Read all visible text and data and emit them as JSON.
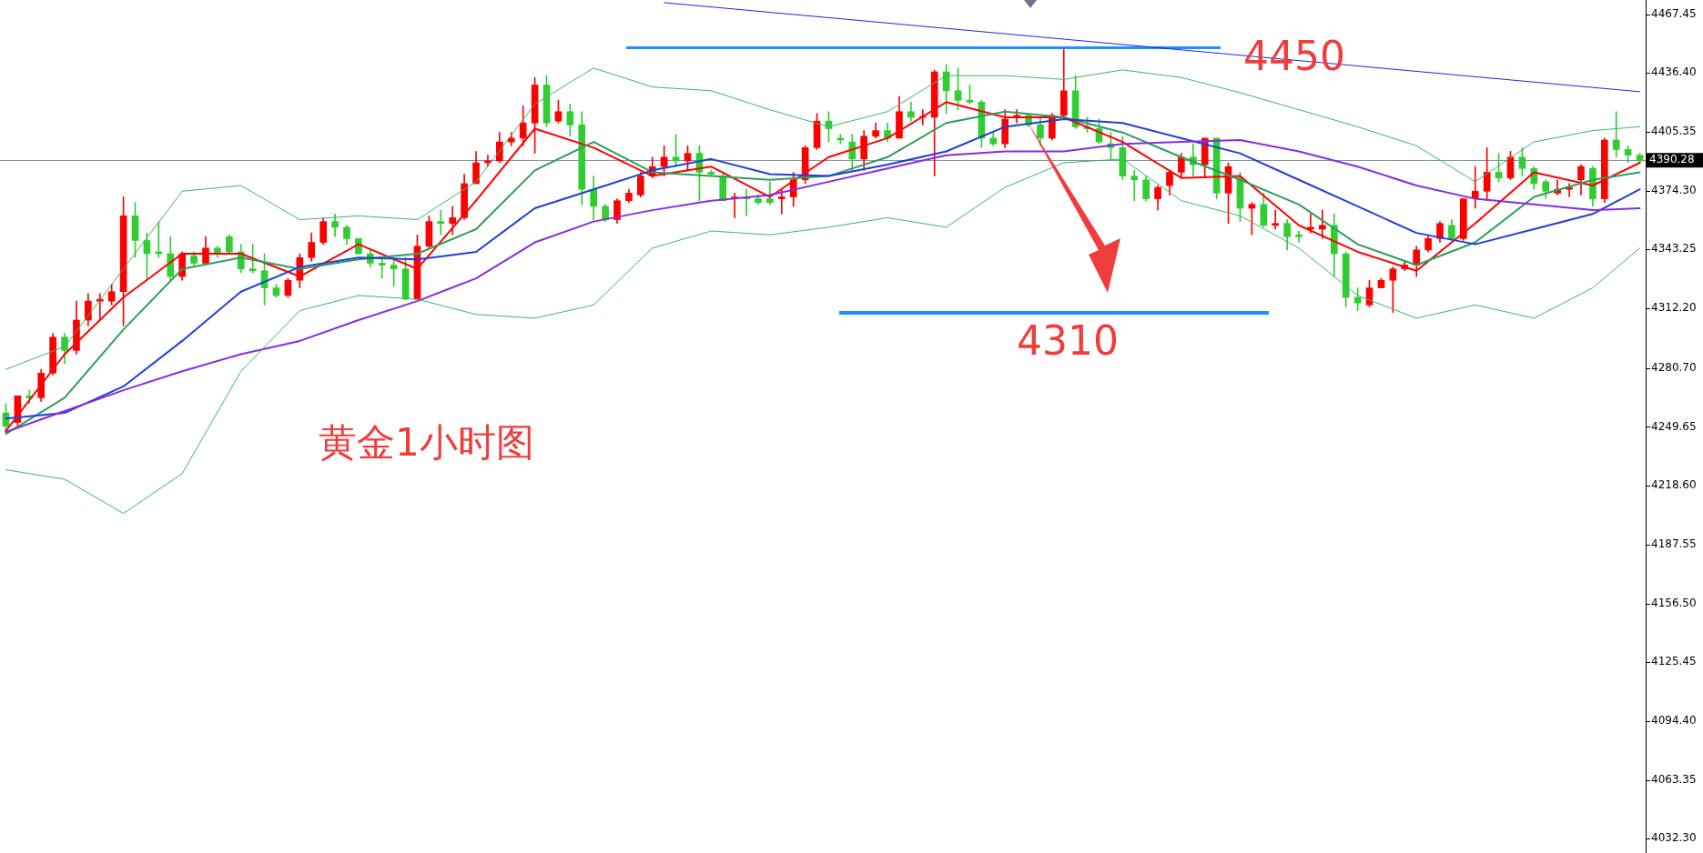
{
  "chart_data": {
    "type": "candlestick",
    "title": "黄金1小时图",
    "categories": [
      null,
      null,
      null,
      null,
      null,
      null,
      null,
      null,
      null,
      null,
      null,
      null,
      null,
      null,
      null,
      null,
      null,
      null,
      null,
      null,
      null,
      null,
      null,
      null,
      null,
      null,
      null,
      null,
      null,
      null,
      null,
      null,
      null,
      null,
      null,
      null,
      null,
      null,
      null,
      null,
      null,
      null,
      null,
      null,
      null,
      null,
      null,
      null,
      null,
      null,
      null,
      null,
      null,
      null,
      null,
      null,
      null,
      null,
      null,
      null,
      null,
      null,
      null,
      null,
      null,
      null,
      null,
      null,
      null,
      null,
      null,
      null,
      null,
      null,
      null,
      null,
      null,
      null,
      null,
      null,
      null,
      null,
      null,
      null,
      null,
      null,
      null,
      null,
      null,
      null,
      null,
      null,
      null,
      null,
      null,
      null,
      null,
      null,
      null,
      null,
      null,
      null,
      null,
      null,
      null,
      null,
      null,
      null,
      null,
      null,
      null,
      null,
      null,
      null,
      null,
      null,
      null,
      null,
      null,
      null,
      null,
      null,
      null,
      null,
      null,
      null,
      null,
      null,
      null,
      null,
      null,
      null,
      null,
      null,
      null,
      null,
      null,
      null,
      null,
      null
    ],
    "ohlc": [
      [
        4257,
        4262,
        4247,
        4250
      ],
      [
        4252,
        4266,
        4250,
        4266
      ],
      [
        4266,
        4269,
        4262,
        4265
      ],
      [
        4265,
        4280,
        4263,
        4278
      ],
      [
        4278,
        4299,
        4277,
        4297
      ],
      [
        4297,
        4299,
        4283,
        4290
      ],
      [
        4290,
        4316,
        4288,
        4306
      ],
      [
        4306,
        4320,
        4303,
        4316
      ],
      [
        4316,
        4320,
        4306,
        4317
      ],
      [
        4316,
        4325,
        4314,
        4321
      ],
      [
        4321,
        4371,
        4303,
        4361
      ],
      [
        4361,
        4368,
        4339,
        4348
      ],
      [
        4348,
        4352,
        4327,
        4341
      ],
      [
        4342,
        4358,
        4339,
        4341
      ],
      [
        4341,
        4350,
        4327,
        4329
      ],
      [
        4329,
        4342,
        4327,
        4341
      ],
      [
        4340,
        4342,
        4335,
        4336
      ],
      [
        4336,
        4350,
        4335,
        4344
      ],
      [
        4344,
        4345,
        4339,
        4341
      ],
      [
        4350,
        4351,
        4341,
        4342
      ],
      [
        4342,
        4346,
        4331,
        4333
      ],
      [
        4333,
        4346,
        4331,
        4332
      ],
      [
        4332,
        4341,
        4314,
        4323
      ],
      [
        4323,
        4325,
        4318,
        4319
      ],
      [
        4319,
        4328,
        4318,
        4327
      ],
      [
        4327,
        4341,
        4323,
        4339
      ],
      [
        4339,
        4352,
        4337,
        4347
      ],
      [
        4347,
        4360,
        4346,
        4358
      ],
      [
        4358,
        4362,
        4350,
        4355
      ],
      [
        4355,
        4356,
        4346,
        4349
      ],
      [
        4349,
        4349,
        4341,
        4341
      ],
      [
        4341,
        4343,
        4334,
        4336
      ],
      [
        4336,
        4339,
        4328,
        4335
      ],
      [
        4335,
        4339,
        4324,
        4333
      ],
      [
        4333,
        4339,
        4317,
        4317
      ],
      [
        4317,
        4351,
        4317,
        4345
      ],
      [
        4345,
        4361,
        4344,
        4358
      ],
      [
        4358,
        4364,
        4351,
        4357
      ],
      [
        4357,
        4366,
        4351,
        4360
      ],
      [
        4360,
        4383,
        4359,
        4378
      ],
      [
        4378,
        4395,
        4378,
        4389
      ],
      [
        4389,
        4393,
        4387,
        4390
      ],
      [
        4390,
        4405,
        4389,
        4400
      ],
      [
        4400,
        4405,
        4398,
        4402
      ],
      [
        4402,
        4419,
        4398,
        4410
      ],
      [
        4410,
        4434,
        4394,
        4430
      ],
      [
        4430,
        4435,
        4408,
        4410
      ],
      [
        4411,
        4422,
        4410,
        4416
      ],
      [
        4416,
        4420,
        4403,
        4409
      ],
      [
        4409,
        4416,
        4367,
        4375
      ],
      [
        4375,
        4382,
        4359,
        4366
      ],
      [
        4366,
        4367,
        4358,
        4359
      ],
      [
        4359,
        4370,
        4357,
        4369
      ],
      [
        4369,
        4375,
        4368,
        4373
      ],
      [
        4372,
        4384,
        4371,
        4382
      ],
      [
        4382,
        4392,
        4381,
        4387
      ],
      [
        4387,
        4398,
        4382,
        4392
      ],
      [
        4392,
        4404,
        4387,
        4390
      ],
      [
        4390,
        4398,
        4385,
        4394
      ],
      [
        4394,
        4398,
        4369,
        4384
      ],
      [
        4384,
        4385,
        4382,
        4383
      ],
      [
        4382,
        4384,
        4369,
        4369
      ],
      [
        4370,
        4373,
        4360,
        4371
      ],
      [
        4371,
        4375,
        4361,
        4370
      ],
      [
        4370,
        4372,
        4367,
        4368
      ],
      [
        4370,
        4379,
        4367,
        4368
      ],
      [
        4370,
        4375,
        4362,
        4371
      ],
      [
        4371,
        4384,
        4366,
        4380
      ],
      [
        4380,
        4398,
        4378,
        4397
      ],
      [
        4397,
        4415,
        4396,
        4411
      ],
      [
        4411,
        4416,
        4400,
        4407
      ],
      [
        4402,
        4404,
        4399,
        4401
      ],
      [
        4400,
        4404,
        4385,
        4391
      ],
      [
        4391,
        4406,
        4385,
        4403
      ],
      [
        4403,
        4410,
        4402,
        4406
      ],
      [
        4406,
        4410,
        4400,
        4402
      ],
      [
        4402,
        4424,
        4402,
        4416
      ],
      [
        4416,
        4421,
        4411,
        4413
      ],
      [
        4413,
        4417,
        4409,
        4413
      ],
      [
        4413,
        4438,
        4382,
        4437
      ],
      [
        4437,
        4441,
        4415,
        4427
      ],
      [
        4427,
        4439,
        4417,
        4422
      ],
      [
        4422,
        4430,
        4420,
        4421
      ],
      [
        4421,
        4422,
        4397,
        4402
      ],
      [
        4402,
        4405,
        4398,
        4399
      ],
      [
        4399,
        4417,
        4397,
        4412
      ],
      [
        4413,
        4417,
        4410,
        4414
      ],
      [
        4414,
        4415,
        4408,
        4409
      ],
      [
        4409,
        4413,
        4398,
        4402
      ],
      [
        4402,
        4415,
        4401,
        4414
      ],
      [
        4414,
        4449,
        4413,
        4427
      ],
      [
        4427,
        4435,
        4407,
        4408
      ],
      [
        4408,
        4413,
        4405,
        4407
      ],
      [
        4407,
        4412,
        4399,
        4400
      ],
      [
        4399,
        4405,
        4391,
        4397
      ],
      [
        4397,
        4403,
        4380,
        4382
      ],
      [
        4382,
        4385,
        4369,
        4380
      ],
      [
        4380,
        4382,
        4369,
        4370
      ],
      [
        4370,
        4377,
        4364,
        4376
      ],
      [
        4377,
        4385,
        4372,
        4384
      ],
      [
        4384,
        4394,
        4381,
        4392
      ],
      [
        4392,
        4399,
        4382,
        4388
      ],
      [
        4388,
        4402,
        4381,
        4402
      ],
      [
        4402,
        4402,
        4370,
        4373
      ],
      [
        4373,
        4389,
        4357,
        4387
      ],
      [
        4381,
        4384,
        4358,
        4365
      ],
      [
        4365,
        4368,
        4351,
        4367
      ],
      [
        4367,
        4373,
        4355,
        4356
      ],
      [
        4356,
        4364,
        4354,
        4357
      ],
      [
        4357,
        4359,
        4343,
        4350
      ],
      [
        4351,
        4353,
        4347,
        4350
      ],
      [
        4354,
        4362,
        4352,
        4355
      ],
      [
        4354,
        4364,
        4349,
        4356
      ],
      [
        4356,
        4362,
        4329,
        4341
      ],
      [
        4341,
        4342,
        4313,
        4318
      ],
      [
        4318,
        4323,
        4311,
        4315
      ],
      [
        4314,
        4327,
        4313,
        4323
      ],
      [
        4323,
        4328,
        4323,
        4327
      ],
      [
        4327,
        4334,
        4310,
        4333
      ],
      [
        4333,
        4337,
        4332,
        4335
      ],
      [
        4335,
        4345,
        4329,
        4343
      ],
      [
        4343,
        4351,
        4342,
        4349
      ],
      [
        4349,
        4358,
        4347,
        4357
      ],
      [
        4356,
        4359,
        4348,
        4349
      ],
      [
        4349,
        4370,
        4348,
        4370
      ],
      [
        4370,
        4387,
        4365,
        4374
      ],
      [
        4374,
        4397,
        4369,
        4384
      ],
      [
        4384,
        4394,
        4379,
        4381
      ],
      [
        4381,
        4395,
        4380,
        4392
      ],
      [
        4392,
        4397,
        4382,
        4386
      ],
      [
        4386,
        4387,
        4375,
        4378
      ],
      [
        4379,
        4380,
        4370,
        4374
      ],
      [
        4373,
        4380,
        4372,
        4375
      ],
      [
        4375,
        4378,
        4371,
        4376
      ],
      [
        4380,
        4388,
        4372,
        4387
      ],
      [
        4386,
        4387,
        4366,
        4370
      ],
      [
        4370,
        4402,
        4368,
        4401
      ],
      [
        4401,
        4416,
        4392,
        4396
      ],
      [
        4396,
        4398,
        4389,
        4393
      ],
      [
        4393,
        4394,
        4389,
        4390
      ]
    ],
    "series": [
      {
        "type": "line",
        "color": "#ff0000",
        "values": [
          4247.5,
          null,
          null,
          null,
          null,
          4288,
          null,
          null,
          null,
          null,
          4318,
          null,
          null,
          null,
          null,
          4341,
          null,
          null,
          null,
          null,
          4341,
          null,
          null,
          null,
          null,
          4329,
          null,
          null,
          null,
          null,
          4346,
          null,
          null,
          null,
          null,
          4333,
          null,
          null,
          null,
          null,
          4369,
          null,
          null,
          null,
          null,
          4407,
          null,
          null,
          null,
          null,
          4397,
          null,
          null,
          null,
          null,
          4382,
          null,
          null,
          null,
          null,
          4387,
          null,
          null,
          null,
          null,
          4371,
          null,
          null,
          null,
          null,
          4392,
          null,
          null,
          null,
          null,
          4402,
          null,
          null,
          null,
          null,
          4421,
          null,
          null,
          null,
          null,
          4413,
          null,
          null,
          null,
          null,
          4413,
          null,
          null,
          null,
          null,
          4400,
          null,
          null,
          null,
          null,
          4381,
          null,
          null,
          null,
          null,
          4382,
          null,
          null,
          null,
          null,
          4356,
          null,
          null,
          null,
          null,
          4342,
          null,
          null,
          null,
          null,
          4332,
          null,
          null,
          null,
          null,
          4357,
          null,
          null,
          null,
          null,
          4384,
          null,
          null,
          null,
          null,
          4377,
          null,
          null,
          null,
          4389
        ]
      },
      {
        "type": "line",
        "color": "#2e9e5b",
        "values": [
          4246,
          null,
          null,
          null,
          null,
          4265,
          null,
          null,
          null,
          null,
          4301,
          null,
          null,
          null,
          null,
          4333,
          null,
          null,
          null,
          null,
          4339,
          null,
          null,
          null,
          null,
          4333,
          null,
          null,
          null,
          null,
          4338,
          null,
          null,
          null,
          null,
          4341,
          null,
          null,
          null,
          null,
          4354,
          null,
          null,
          null,
          null,
          4385,
          null,
          null,
          null,
          null,
          4400,
          null,
          null,
          null,
          null,
          4384,
          null,
          null,
          null,
          null,
          4382,
          null,
          null,
          null,
          null,
          4380,
          null,
          null,
          null,
          null,
          4382,
          null,
          null,
          null,
          null,
          4392,
          null,
          null,
          null,
          null,
          4410,
          null,
          null,
          null,
          null,
          4416,
          null,
          null,
          null,
          null,
          4413,
          null,
          null,
          null,
          null,
          4405,
          null,
          null,
          null,
          null,
          4392,
          null,
          null,
          null,
          null,
          4380,
          null,
          null,
          null,
          null,
          4367,
          null,
          null,
          null,
          null,
          4346,
          null,
          null,
          null,
          null,
          4335,
          null,
          null,
          null,
          null,
          4347,
          null,
          null,
          null,
          null,
          4371,
          null,
          null,
          null,
          null,
          4380,
          null,
          null,
          null,
          4384
        ]
      },
      {
        "type": "line",
        "color": "#1f3fd6",
        "values": [
          4254,
          null,
          null,
          null,
          null,
          4257,
          null,
          null,
          null,
          null,
          4271,
          null,
          null,
          null,
          null,
          4295,
          null,
          null,
          null,
          null,
          4321,
          null,
          null,
          null,
          null,
          4334,
          null,
          null,
          null,
          null,
          4339,
          null,
          null,
          null,
          null,
          4338,
          null,
          null,
          null,
          null,
          4342,
          null,
          null,
          null,
          null,
          4365,
          null,
          null,
          null,
          null,
          4375,
          null,
          null,
          null,
          null,
          4385,
          null,
          null,
          null,
          null,
          4391,
          null,
          null,
          null,
          null,
          4383,
          null,
          null,
          null,
          null,
          4382,
          null,
          null,
          null,
          null,
          4388,
          null,
          null,
          null,
          null,
          4395,
          null,
          null,
          null,
          null,
          4408,
          null,
          null,
          null,
          null,
          4412,
          null,
          null,
          null,
          null,
          4410,
          null,
          null,
          null,
          null,
          4402,
          null,
          null,
          null,
          null,
          4394,
          null,
          null,
          null,
          null,
          4380,
          null,
          null,
          null,
          null,
          4366,
          null,
          null,
          null,
          null,
          4352,
          null,
          null,
          null,
          null,
          4346,
          null,
          null,
          null,
          null,
          4354,
          null,
          null,
          null,
          null,
          4362,
          null,
          null,
          null,
          4375
        ]
      },
      {
        "type": "line",
        "color": "#8a2be2",
        "values": [
          4247,
          null,
          null,
          null,
          null,
          4258,
          null,
          null,
          null,
          null,
          4269,
          null,
          null,
          null,
          null,
          4279,
          null,
          null,
          null,
          null,
          4288,
          null,
          null,
          null,
          null,
          4295,
          null,
          null,
          null,
          null,
          4306,
          null,
          null,
          null,
          null,
          4316,
          null,
          null,
          null,
          null,
          4328,
          null,
          null,
          null,
          null,
          4347,
          null,
          null,
          null,
          null,
          4358,
          null,
          null,
          null,
          null,
          4364,
          null,
          null,
          null,
          null,
          4369,
          null,
          null,
          null,
          null,
          4372,
          null,
          null,
          null,
          null,
          4379,
          null,
          null,
          null,
          null,
          4386,
          null,
          null,
          null,
          null,
          4393,
          null,
          null,
          null,
          null,
          4395,
          null,
          null,
          null,
          null,
          4395,
          null,
          null,
          null,
          null,
          4399,
          null,
          null,
          null,
          null,
          4400,
          null,
          null,
          null,
          null,
          4401,
          null,
          null,
          null,
          null,
          4395,
          null,
          null,
          null,
          null,
          4387,
          null,
          null,
          null,
          null,
          4377,
          null,
          null,
          null,
          null,
          4370,
          null,
          null,
          null,
          null,
          4367,
          null,
          null,
          null,
          null,
          4364,
          null,
          null,
          null,
          4365
        ]
      },
      {
        "type": "line",
        "color": "#3cb371",
        "values": [
          4280,
          null,
          null,
          null,
          null,
          4292,
          null,
          null,
          null,
          null,
          4333,
          null,
          null,
          null,
          null,
          4374,
          null,
          null,
          null,
          null,
          4377,
          null,
          null,
          null,
          null,
          4359,
          null,
          null,
          null,
          null,
          4361,
          null,
          null,
          null,
          null,
          4359,
          null,
          null,
          null,
          null,
          4379,
          null,
          null,
          null,
          null,
          4420,
          null,
          null,
          null,
          null,
          4439,
          null,
          null,
          null,
          null,
          4429,
          null,
          null,
          null,
          null,
          4427,
          null,
          null,
          null,
          null,
          4417,
          null,
          null,
          null,
          null,
          4408,
          null,
          null,
          null,
          null,
          4416,
          null,
          null,
          null,
          null,
          4435,
          null,
          null,
          null,
          null,
          4435,
          null,
          null,
          null,
          null,
          4433,
          null,
          null,
          null,
          null,
          4438,
          null,
          null,
          null,
          null,
          4434,
          null,
          null,
          null,
          null,
          4426,
          null,
          null,
          null,
          null,
          4417,
          null,
          null,
          null,
          null,
          4408,
          null,
          null,
          null,
          null,
          4398,
          null,
          null,
          null,
          null,
          4379,
          null,
          null,
          null,
          null,
          4400,
          null,
          null,
          null,
          null,
          4406,
          null,
          null,
          null,
          4408
        ]
      },
      {
        "type": "line",
        "color": "#3cb371",
        "values": [
          4227,
          null,
          null,
          null,
          null,
          4222,
          null,
          null,
          null,
          null,
          4204,
          null,
          null,
          null,
          null,
          4225,
          null,
          null,
          null,
          null,
          4279,
          null,
          null,
          null,
          null,
          4311,
          null,
          null,
          null,
          null,
          4319,
          null,
          null,
          null,
          null,
          4317,
          null,
          null,
          null,
          null,
          4309,
          null,
          null,
          null,
          null,
          4307,
          null,
          null,
          null,
          null,
          4314,
          null,
          null,
          null,
          null,
          4344,
          null,
          null,
          null,
          null,
          4353,
          null,
          null,
          null,
          null,
          4351,
          null,
          null,
          null,
          null,
          4355,
          null,
          null,
          null,
          null,
          4360,
          null,
          null,
          null,
          null,
          4355,
          null,
          null,
          null,
          null,
          4376,
          null,
          null,
          null,
          null,
          4389,
          null,
          null,
          null,
          null,
          4391,
          null,
          null,
          null,
          null,
          4369,
          null,
          null,
          null,
          null,
          4361,
          null,
          null,
          null,
          null,
          4344,
          null,
          null,
          null,
          null,
          4319,
          null,
          null,
          null,
          null,
          4307,
          null,
          null,
          null,
          null,
          4314,
          null,
          null,
          null,
          null,
          4307,
          null,
          null,
          null,
          null,
          4323,
          null,
          null,
          null,
          4344
        ]
      },
      {
        "type": "line",
        "color": "#2323e6",
        "values": [
          null,
          null,
          null,
          null,
          null,
          null,
          null,
          null,
          null,
          null,
          null,
          null,
          null,
          null,
          null,
          null,
          null,
          null,
          null,
          null,
          null,
          null,
          null,
          null,
          null,
          null,
          null,
          null,
          null,
          null,
          null,
          null,
          null,
          null,
          null,
          null,
          null,
          null,
          null,
          null,
          null,
          null,
          null,
          null,
          null,
          null,
          null,
          null,
          null,
          null,
          null,
          null,
          null,
          null,
          null,
          null,
          4473.5,
          null,
          null,
          null,
          null,
          null,
          null,
          null,
          null,
          null,
          null,
          null,
          null,
          null,
          null,
          null,
          null,
          null,
          null,
          null,
          null,
          null,
          null,
          null,
          null,
          null,
          null,
          null,
          null,
          null,
          null,
          null,
          null,
          null,
          null,
          null,
          null,
          null,
          null,
          null,
          null,
          null,
          null,
          null,
          null,
          null,
          null,
          null,
          null,
          null,
          null,
          null,
          null,
          null,
          null,
          null,
          null,
          null,
          null,
          null,
          null,
          null,
          null,
          null,
          null,
          null,
          null,
          null,
          null,
          null,
          null,
          null,
          null,
          null,
          null,
          null,
          null,
          null,
          null,
          null,
          null,
          null,
          null,
          4426.5
        ]
      }
    ],
    "ref_lines": [
      {
        "axis": "y",
        "value": 4390.28,
        "label": "4390.28",
        "color": "#8796a5"
      },
      {
        "axis": "y",
        "value": 4450,
        "label": "4450",
        "color": "#1e90ff"
      },
      {
        "axis": "y",
        "value": 4310,
        "label": "4310",
        "color": "#1e90ff"
      }
    ],
    "ylim": [
      4024.8,
      4474.9
    ],
    "yticks": [
      4467.45,
      {
        "value": 4436.4,
        "label": "4436.40"
      },
      4405.35,
      {
        "value": 4374.3,
        "label": "4374.30"
      },
      4343.25,
      {
        "value": 4312.2,
        "label": "4312.20"
      },
      {
        "value": 4280.7,
        "label": "4280.70"
      },
      4249.65,
      {
        "value": 4218.6,
        "label": "4218.60"
      },
      4187.55,
      {
        "value": 4156.5,
        "label": "4156.50"
      },
      4125.45,
      {
        "value": 4094.4,
        "label": "4094.40"
      },
      4063.35,
      {
        "value": 4032.3,
        "label": "4032.30"
      }
    ],
    "tick_labels": "y",
    "grid": false,
    "legend": false
  }
}
